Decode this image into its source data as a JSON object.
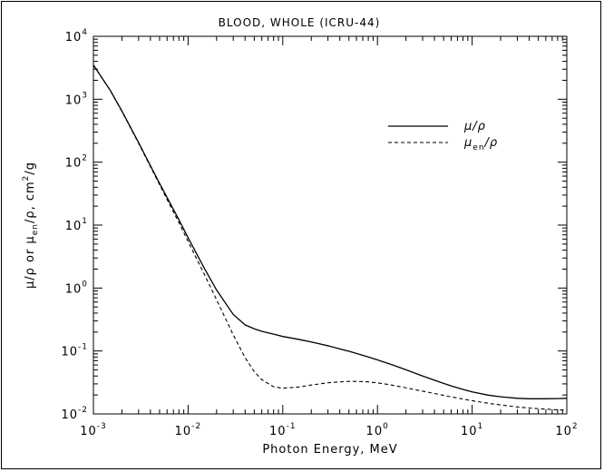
{
  "chart_data": {
    "type": "line",
    "title": "BLOOD, WHOLE (ICRU-44)",
    "xlabel": "Photon Energy, MeV",
    "ylabel": {
      "p1": "μ/ρ or μ",
      "sub1": "en",
      "p2": "/ρ, cm",
      "sup": "2",
      "p3": "/g"
    },
    "x_scale": "log",
    "y_scale": "log",
    "xlim": [
      0.001,
      100
    ],
    "ylim": [
      0.01,
      10000
    ],
    "x_ticks": [
      {
        "value": 0.001,
        "base": "10",
        "exp": "-3"
      },
      {
        "value": 0.01,
        "base": "10",
        "exp": "-2"
      },
      {
        "value": 0.1,
        "base": "10",
        "exp": "-1"
      },
      {
        "value": 1,
        "base": "10",
        "exp": "0"
      },
      {
        "value": 10,
        "base": "10",
        "exp": "1"
      },
      {
        "value": 100,
        "base": "10",
        "exp": "2"
      }
    ],
    "y_ticks": [
      {
        "value": 0.01,
        "base": "10",
        "exp": "-2"
      },
      {
        "value": 0.1,
        "base": "10",
        "exp": "-1"
      },
      {
        "value": 1,
        "base": "10",
        "exp": "0"
      },
      {
        "value": 10,
        "base": "10",
        "exp": "1"
      },
      {
        "value": 100,
        "base": "10",
        "exp": "2"
      },
      {
        "value": 1000,
        "base": "10",
        "exp": "3"
      },
      {
        "value": 10000,
        "base": "10",
        "exp": "4"
      }
    ],
    "legend_position": "top-right",
    "grid": false,
    "series": [
      {
        "name": "μ/ρ",
        "style": "solid",
        "color": "#000000",
        "x": [
          0.001,
          0.0015,
          0.002,
          0.003,
          0.004,
          0.005,
          0.006,
          0.008,
          0.01,
          0.015,
          0.02,
          0.03,
          0.04,
          0.05,
          0.06,
          0.08,
          0.1,
          0.15,
          0.2,
          0.3,
          0.4,
          0.5,
          0.6,
          0.8,
          1,
          1.25,
          1.5,
          2,
          3,
          4,
          5,
          6,
          8,
          10,
          15,
          20,
          30,
          40,
          50,
          60,
          80,
          100
        ],
        "y": [
          3500,
          1400,
          650,
          205,
          88,
          46,
          27.5,
          12.2,
          6.3,
          2.0,
          0.93,
          0.38,
          0.26,
          0.225,
          0.205,
          0.185,
          0.17,
          0.152,
          0.139,
          0.121,
          0.108,
          0.0988,
          0.0914,
          0.0803,
          0.0721,
          0.0645,
          0.0588,
          0.0502,
          0.04,
          0.0343,
          0.0305,
          0.0279,
          0.0245,
          0.0224,
          0.0198,
          0.0187,
          0.0177,
          0.0174,
          0.0174,
          0.0174,
          0.0175,
          0.0177
        ]
      },
      {
        "name": "μ",
        "name_sub": "en",
        "name_tail": "/ρ",
        "style": "dashed",
        "color": "#000000",
        "x": [
          0.001,
          0.0015,
          0.002,
          0.003,
          0.004,
          0.005,
          0.006,
          0.008,
          0.01,
          0.015,
          0.02,
          0.03,
          0.04,
          0.05,
          0.06,
          0.08,
          0.1,
          0.15,
          0.2,
          0.3,
          0.4,
          0.5,
          0.6,
          0.8,
          1,
          1.25,
          1.5,
          2,
          3,
          4,
          5,
          6,
          8,
          10,
          15,
          20,
          30,
          40,
          50,
          60,
          80,
          100
        ],
        "y": [
          3480,
          1390,
          640,
          200,
          85,
          44,
          25.5,
          11.0,
          5.5,
          1.6,
          0.65,
          0.18,
          0.078,
          0.047,
          0.035,
          0.027,
          0.0256,
          0.0268,
          0.0288,
          0.0312,
          0.0323,
          0.0328,
          0.0328,
          0.0323,
          0.0311,
          0.0296,
          0.0283,
          0.026,
          0.023,
          0.0211,
          0.0197,
          0.0187,
          0.0172,
          0.0162,
          0.0147,
          0.0139,
          0.0129,
          0.0124,
          0.0121,
          0.0119,
          0.0116,
          0.0115
        ]
      }
    ]
  }
}
